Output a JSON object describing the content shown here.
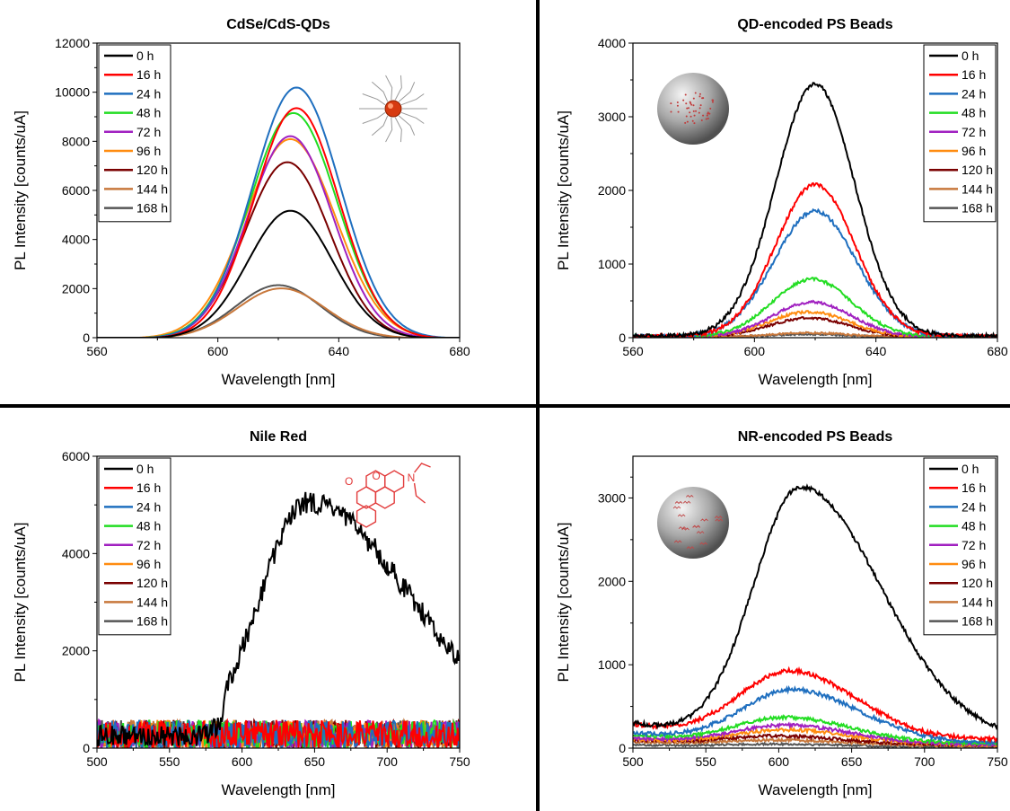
{
  "chart_data": [
    {
      "type": "line",
      "title": "CdSe/CdS-QDs",
      "xlabel": "Wavelength [nm]",
      "ylabel": "PL Intensity [counts/uA]",
      "xlim": [
        560,
        680
      ],
      "ylim": [
        0,
        12000
      ],
      "xticks": [
        560,
        600,
        640,
        680
      ],
      "yticks": [
        0,
        2000,
        4000,
        6000,
        8000,
        10000,
        12000
      ],
      "legend": "top-left",
      "inset": "qd-icon",
      "series": [
        {
          "name": "0 h",
          "peak_x": 624,
          "peak_y": 5200,
          "width": 14,
          "noise": 0,
          "baseline": 0
        },
        {
          "name": "16 h",
          "peak_x": 626,
          "peak_y": 9380,
          "width": 14,
          "noise": 0,
          "baseline": 0
        },
        {
          "name": "24 h",
          "peak_x": 626,
          "peak_y": 10220,
          "width": 14.5,
          "noise": 0,
          "baseline": 0
        },
        {
          "name": "48 h",
          "peak_x": 625,
          "peak_y": 9180,
          "width": 14.5,
          "noise": 0,
          "baseline": 0
        },
        {
          "name": "72 h",
          "peak_x": 624,
          "peak_y": 8240,
          "width": 14,
          "noise": 0,
          "baseline": 0
        },
        {
          "name": "96 h",
          "peak_x": 624,
          "peak_y": 8120,
          "width": 15,
          "noise": 0,
          "baseline": 0
        },
        {
          "name": "120 h",
          "peak_x": 623,
          "peak_y": 7180,
          "width": 14,
          "noise": 0,
          "baseline": 0
        },
        {
          "name": "144 h",
          "peak_x": 621,
          "peak_y": 2040,
          "width": 14.5,
          "noise": 0,
          "baseline": 0
        },
        {
          "name": "168 h",
          "peak_x": 620,
          "peak_y": 2170,
          "width": 14,
          "noise": 0,
          "baseline": 0
        }
      ]
    },
    {
      "type": "line",
      "title": "QD-encoded PS Beads",
      "xlabel": "Wavelength [nm]",
      "ylabel": "PL Intensity [counts/uA]",
      "xlim": [
        560,
        680
      ],
      "ylim": [
        0,
        4000
      ],
      "xticks": [
        560,
        600,
        640,
        680
      ],
      "yticks": [
        0,
        1000,
        2000,
        3000,
        4000
      ],
      "legend": "top-right",
      "inset": "bead-dots",
      "series": [
        {
          "name": "0 h",
          "peak_x": 620,
          "peak_y": 3420,
          "width": 13,
          "noise": 25,
          "baseline": 40
        },
        {
          "name": "16 h",
          "peak_x": 620,
          "peak_y": 2060,
          "width": 13,
          "noise": 25,
          "baseline": 30
        },
        {
          "name": "24 h",
          "peak_x": 620,
          "peak_y": 1700,
          "width": 13.5,
          "noise": 25,
          "baseline": 30
        },
        {
          "name": "48 h",
          "peak_x": 619,
          "peak_y": 780,
          "width": 13,
          "noise": 20,
          "baseline": 25
        },
        {
          "name": "72 h",
          "peak_x": 619,
          "peak_y": 470,
          "width": 13,
          "noise": 18,
          "baseline": 20
        },
        {
          "name": "96 h",
          "peak_x": 618,
          "peak_y": 340,
          "width": 13,
          "noise": 18,
          "baseline": 20
        },
        {
          "name": "120 h",
          "peak_x": 618,
          "peak_y": 260,
          "width": 13,
          "noise": 15,
          "baseline": 15
        },
        {
          "name": "144 h",
          "peak_x": 618,
          "peak_y": 60,
          "width": 13,
          "noise": 12,
          "baseline": 10
        },
        {
          "name": "168 h",
          "peak_x": 618,
          "peak_y": 40,
          "width": 13,
          "noise": 12,
          "baseline": 10
        }
      ]
    },
    {
      "type": "line",
      "title": "Nile Red",
      "xlabel": "Wavelength [nm]",
      "ylabel": "PL Intensity [counts/uA]",
      "xlim": [
        500,
        750
      ],
      "ylim": [
        0,
        6000
      ],
      "xticks": [
        500,
        550,
        600,
        650,
        700,
        750
      ],
      "yticks": [
        0,
        2000,
        4000,
        6000
      ],
      "legend": "top-left",
      "inset": "nile-red-structure",
      "series": [
        {
          "name": "0 h",
          "peak_x": 645,
          "peak_y": 4800,
          "width": 32,
          "width_right": 70,
          "noise": 220,
          "baseline": 250,
          "onset": 590
        },
        {
          "name": "16 h",
          "peak_x": 0,
          "peak_y": 0,
          "width": 1,
          "noise": 250,
          "baseline": 280
        },
        {
          "name": "24 h",
          "peak_x": 0,
          "peak_y": 0,
          "width": 1,
          "noise": 250,
          "baseline": 280
        },
        {
          "name": "48 h",
          "peak_x": 0,
          "peak_y": 0,
          "width": 1,
          "noise": 250,
          "baseline": 280
        },
        {
          "name": "72 h",
          "peak_x": 0,
          "peak_y": 0,
          "width": 1,
          "noise": 250,
          "baseline": 280
        },
        {
          "name": "96 h",
          "peak_x": 0,
          "peak_y": 0,
          "width": 1,
          "noise": 250,
          "baseline": 280
        },
        {
          "name": "120 h",
          "peak_x": 0,
          "peak_y": 0,
          "width": 1,
          "noise": 250,
          "baseline": 280
        },
        {
          "name": "144 h",
          "peak_x": 0,
          "peak_y": 0,
          "width": 1,
          "noise": 250,
          "baseline": 280
        },
        {
          "name": "168 h",
          "peak_x": 0,
          "peak_y": 0,
          "width": 1,
          "noise": 250,
          "baseline": 280
        }
      ]
    },
    {
      "type": "line",
      "title": "NR-encoded PS Beads",
      "xlabel": "Wavelength [nm]",
      "ylabel": "PL Intensity [counts/uA]",
      "xlim": [
        500,
        750
      ],
      "ylim": [
        0,
        3500
      ],
      "xticks": [
        500,
        550,
        600,
        650,
        700,
        750
      ],
      "yticks": [
        0,
        1000,
        2000,
        3000
      ],
      "legend": "top-right",
      "inset": "bead-structures",
      "series": [
        {
          "name": "0 h",
          "peak_x": 615,
          "peak_y": 3000,
          "width": 32,
          "width_right": 55,
          "noise": 25,
          "baseline": 300
        },
        {
          "name": "16 h",
          "peak_x": 608,
          "peak_y": 800,
          "width": 35,
          "width_right": 45,
          "noise": 25,
          "baseline": 280
        },
        {
          "name": "24 h",
          "peak_x": 610,
          "peak_y": 620,
          "width": 35,
          "width_right": 45,
          "noise": 25,
          "baseline": 180
        },
        {
          "name": "48 h",
          "peak_x": 605,
          "peak_y": 300,
          "width": 35,
          "width_right": 45,
          "noise": 20,
          "baseline": 150
        },
        {
          "name": "72 h",
          "peak_x": 605,
          "peak_y": 220,
          "width": 35,
          "width_right": 45,
          "noise": 20,
          "baseline": 120
        },
        {
          "name": "96 h",
          "peak_x": 605,
          "peak_y": 170,
          "width": 35,
          "width_right": 45,
          "noise": 20,
          "baseline": 110
        },
        {
          "name": "120 h",
          "peak_x": 600,
          "peak_y": 100,
          "width": 35,
          "width_right": 45,
          "noise": 18,
          "baseline": 100
        },
        {
          "name": "144 h",
          "peak_x": 600,
          "peak_y": 60,
          "width": 35,
          "width_right": 45,
          "noise": 15,
          "baseline": 80
        },
        {
          "name": "168 h",
          "peak_x": 600,
          "peak_y": 30,
          "width": 35,
          "width_right": 45,
          "noise": 12,
          "baseline": 40
        }
      ]
    }
  ],
  "colors": {
    "0 h": "#000000",
    "16 h": "#ff0000",
    "24 h": "#1f6fbf",
    "48 h": "#22dd22",
    "72 h": "#a020c0",
    "96 h": "#ff8c10",
    "120 h": "#7a0000",
    "144 h": "#c8783c",
    "168 h": "#555555"
  },
  "insets": {
    "nile_red_labels": [
      "O",
      "O",
      "N"
    ]
  }
}
